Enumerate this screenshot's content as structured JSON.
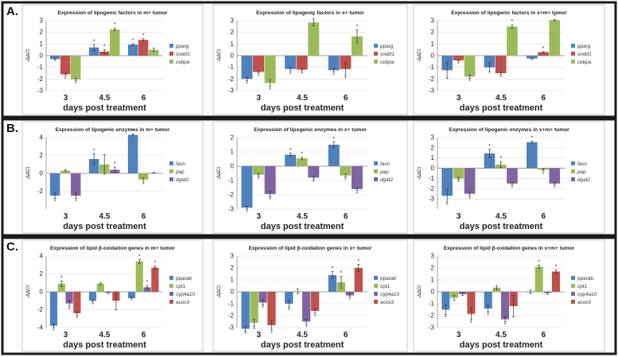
{
  "row_labels": [
    "A.",
    "B.",
    "C."
  ],
  "colors": {
    "blue": "#4F81BD",
    "red": "#C0504D",
    "green": "#9BBB59",
    "purple": "#8064A2"
  },
  "chart_data": [
    {
      "type": "bar",
      "title": "Expression of lipogenic factors in m+ tumor",
      "xlabel": "days post treatment",
      "ylabel": "-ΔΔCt",
      "categories": [
        "3",
        "4.5",
        "6"
      ],
      "ylim": [
        -3,
        3
      ],
      "yticks": [
        -3,
        -2,
        -1,
        0,
        1,
        2,
        3
      ],
      "grid": true,
      "legend_position": "right",
      "series": [
        {
          "name": "pparg",
          "color": "#4F81BD",
          "values": [
            -0.3,
            0.7,
            0.95
          ],
          "errors": [
            0.1,
            0.25,
            0.08
          ],
          "stars": [
            false,
            true,
            true
          ]
        },
        {
          "name": "srebf1",
          "color": "#C0504D",
          "values": [
            -1.6,
            0.35,
            1.35
          ],
          "errors": [
            0.1,
            0.15,
            0.1
          ],
          "stars": [
            true,
            true,
            true
          ]
        },
        {
          "name": "cebpa",
          "color": "#9BBB59",
          "values": [
            -2.05,
            2.25,
            0.5
          ],
          "errors": [
            0.1,
            0.12,
            0.15
          ],
          "stars": [
            true,
            true,
            false
          ]
        }
      ]
    },
    {
      "type": "bar",
      "title": "Expression of lipogenic factors in x+ tumor",
      "xlabel": "days post treatment",
      "ylabel": "-ΔΔCt",
      "categories": [
        "3",
        "4.5",
        "6"
      ],
      "ylim": [
        -3,
        3
      ],
      "yticks": [
        -3,
        -2,
        -1,
        0,
        1,
        2,
        3
      ],
      "grid": true,
      "legend_position": "right",
      "series": [
        {
          "name": "pparg",
          "color": "#4F81BD",
          "values": [
            -2.0,
            -1.15,
            -1.25
          ],
          "errors": [
            0.15,
            0.15,
            0.15
          ],
          "stars": [
            true,
            true,
            true
          ]
        },
        {
          "name": "srebf1",
          "color": "#C0504D",
          "values": [
            -1.4,
            -1.2,
            -1.15
          ],
          "errors": [
            0.1,
            0.1,
            0.55
          ],
          "stars": [
            true,
            true,
            true
          ]
        },
        {
          "name": "cebpa",
          "color": "#9BBB59",
          "values": [
            -2.35,
            2.85,
            1.65
          ],
          "errors": [
            0.3,
            0.3,
            0.55
          ],
          "stars": [
            true,
            true,
            true
          ]
        }
      ]
    },
    {
      "type": "bar",
      "title": "Expression of lipogenic factors in x+m+ tumor",
      "xlabel": "days post treatment",
      "ylabel": "-ΔΔCt",
      "categories": [
        "3",
        "4.5",
        "6"
      ],
      "ylim": [
        -3,
        3
      ],
      "yticks": [
        -3,
        -2,
        -1,
        0,
        1,
        2,
        3
      ],
      "grid": true,
      "legend_position": "right",
      "series": [
        {
          "name": "pparg",
          "color": "#4F81BD",
          "values": [
            -1.25,
            -1.0,
            -0.25
          ],
          "errors": [
            0.7,
            0.4,
            0.05
          ],
          "stars": [
            false,
            false,
            false
          ]
        },
        {
          "name": "srebf1",
          "color": "#C0504D",
          "values": [
            -0.4,
            -1.5,
            0.3
          ],
          "errors": [
            0.05,
            0.1,
            0.05
          ],
          "stars": [
            true,
            true,
            true
          ]
        },
        {
          "name": "cebpa",
          "color": "#9BBB59",
          "values": [
            -1.8,
            2.5,
            3.05
          ],
          "errors": [
            0.15,
            0.15,
            0.05
          ],
          "stars": [
            true,
            true,
            true
          ]
        }
      ]
    },
    {
      "type": "bar",
      "title": "Expression of lipogenic enzymes in m+ tumor",
      "xlabel": "days post treatment",
      "ylabel": "-ΔΔCt",
      "categories": [
        "3",
        "4.5",
        "6"
      ],
      "ylim": [
        -4,
        4
      ],
      "yticks": [
        -2,
        0,
        2,
        4
      ],
      "grid": true,
      "legend_position": "right",
      "series": [
        {
          "name": "fasn",
          "color": "#4F81BD",
          "values": [
            -2.5,
            1.6,
            4.3
          ],
          "errors": [
            0.3,
            0.6,
            0.1
          ],
          "stars": [
            true,
            true,
            true
          ]
        },
        {
          "name": "pap",
          "color": "#9BBB59",
          "values": [
            0.3,
            1.0,
            -0.7
          ],
          "errors": [
            0.1,
            1.1,
            0.2
          ],
          "stars": [
            false,
            false,
            true
          ]
        },
        {
          "name": "dgat2",
          "color": "#8064A2",
          "values": [
            -2.5,
            0.4,
            0.05
          ],
          "errors": [
            0.3,
            0.3,
            0.05
          ],
          "stars": [
            true,
            true,
            false
          ]
        }
      ]
    },
    {
      "type": "bar",
      "title": "Expression of lipogenic enzymes in x+ tumor",
      "xlabel": "days post treatment",
      "ylabel": "-ΔΔCt",
      "categories": [
        "3",
        "4.5",
        "6"
      ],
      "ylim": [
        -3,
        2
      ],
      "yticks": [
        -3,
        -2,
        -1,
        0,
        1,
        2
      ],
      "grid": true,
      "legend_position": "right",
      "series": [
        {
          "name": "fasn",
          "color": "#4F81BD",
          "values": [
            -2.9,
            0.8,
            1.5
          ],
          "errors": [
            0.1,
            0.1,
            0.2
          ],
          "stars": [
            true,
            true,
            true
          ]
        },
        {
          "name": "pap",
          "color": "#9BBB59",
          "values": [
            -0.6,
            0.55,
            -0.65
          ],
          "errors": [
            0.1,
            0.1,
            0.1
          ],
          "stars": [
            true,
            true,
            true
          ]
        },
        {
          "name": "dgat2",
          "color": "#8064A2",
          "values": [
            -1.95,
            -0.8,
            -1.6
          ],
          "errors": [
            0.2,
            0.1,
            0.1
          ],
          "stars": [
            true,
            true,
            true
          ]
        }
      ]
    },
    {
      "type": "bar",
      "title": "Expression of lipogenic enzymes in x+m+ tumor",
      "xlabel": "days post treatment",
      "ylabel": "-ΔΔCt",
      "categories": [
        "3",
        "4.5",
        "6"
      ],
      "ylim": [
        -4,
        3
      ],
      "yticks": [
        -3,
        -2,
        -1,
        0,
        1,
        2,
        3
      ],
      "grid": true,
      "legend_position": "right",
      "series": [
        {
          "name": "fasn",
          "color": "#4F81BD",
          "values": [
            -2.7,
            1.45,
            2.55
          ],
          "errors": [
            0.6,
            0.4,
            0.1
          ],
          "stars": [
            true,
            true,
            true
          ]
        },
        {
          "name": "pap",
          "color": "#9BBB59",
          "values": [
            -1.0,
            0.35,
            -0.15
          ],
          "errors": [
            0.1,
            0.3,
            0.1
          ],
          "stars": [
            true,
            true,
            true
          ]
        },
        {
          "name": "dgat2",
          "color": "#8064A2",
          "values": [
            -2.5,
            -1.5,
            -1.5
          ],
          "errors": [
            0.2,
            0.1,
            0.1
          ],
          "stars": [
            true,
            true,
            true
          ]
        }
      ]
    },
    {
      "type": "bar",
      "title": "Expression of lipid β-oxidation genes in m+ tumor",
      "xlabel": "days post treatment",
      "ylabel": "-ΔΔCt",
      "categories": [
        "3",
        "4.5",
        "6"
      ],
      "ylim": [
        -4,
        4
      ],
      "yticks": [
        -4,
        -2,
        0,
        2,
        4
      ],
      "grid": true,
      "legend_position": "right",
      "series": [
        {
          "name": "pparab",
          "color": "#4F81BD",
          "values": [
            -3.8,
            -1.0,
            -0.7
          ],
          "errors": [
            0.2,
            0.1,
            0.1
          ],
          "stars": [
            true,
            true,
            false
          ]
        },
        {
          "name": "cpt1",
          "color": "#9BBB59",
          "values": [
            0.9,
            0.9,
            3.4
          ],
          "errors": [
            0.3,
            0.1,
            0.2
          ],
          "stars": [
            true,
            false,
            true
          ]
        },
        {
          "name": "cyp4a10",
          "color": "#8064A2",
          "values": [
            -1.3,
            -0.1,
            0.5
          ],
          "errors": [
            0.3,
            0.1,
            0.2
          ],
          "stars": [
            true,
            false,
            true
          ]
        },
        {
          "name": "acox3",
          "color": "#C0504D",
          "values": [
            -2.4,
            -1.0,
            2.7
          ],
          "errors": [
            0.2,
            1.0,
            0.2
          ],
          "stars": [
            true,
            false,
            true
          ]
        }
      ]
    },
    {
      "type": "bar",
      "title": "Expression of lipid β-oxidation genes in x+ tumor",
      "xlabel": "days post treatment",
      "ylabel": "-ΔΔCt",
      "categories": [
        "3",
        "4.5",
        "6"
      ],
      "ylim": [
        -3,
        3
      ],
      "yticks": [
        -3,
        -2,
        -1,
        0,
        1,
        2,
        3
      ],
      "grid": true,
      "legend_position": "right",
      "series": [
        {
          "name": "pparab",
          "color": "#4F81BD",
          "values": [
            -3.1,
            -1.0,
            1.4
          ],
          "errors": [
            0.2,
            0.3,
            0.3
          ],
          "stars": [
            true,
            true,
            true
          ]
        },
        {
          "name": "cpt1",
          "color": "#9BBB59",
          "values": [
            -2.6,
            0.05,
            0.8
          ],
          "errors": [
            0.3,
            0.2,
            0.5
          ],
          "stars": [
            true,
            false,
            true
          ]
        },
        {
          "name": "cyp4a10",
          "color": "#8064A2",
          "values": [
            -0.9,
            -2.5,
            -0.3
          ],
          "errors": [
            0.2,
            0.2,
            0.1
          ],
          "stars": [
            true,
            true,
            true
          ]
        },
        {
          "name": "acox3",
          "color": "#C0504D",
          "values": [
            -2.8,
            -1.6,
            2.0
          ],
          "errors": [
            0.4,
            0.2,
            0.3
          ],
          "stars": [
            true,
            true,
            true
          ]
        }
      ]
    },
    {
      "type": "bar",
      "title": "Expression of lipid β-oxidation genes in x+m+ tumor",
      "xlabel": "days post treatment",
      "ylabel": "-ΔΔCt",
      "categories": [
        "3",
        "4.5",
        "6"
      ],
      "ylim": [
        -3,
        3
      ],
      "yticks": [
        -3,
        -2,
        -1,
        0,
        1,
        2,
        3
      ],
      "grid": true,
      "legend_position": "right",
      "series": [
        {
          "name": "pparab",
          "color": "#4F81BD",
          "values": [
            -1.5,
            -1.4,
            0.0
          ],
          "errors": [
            0.4,
            0.3,
            0.15
          ],
          "stars": [
            true,
            true,
            false
          ]
        },
        {
          "name": "cpt1",
          "color": "#9BBB59",
          "values": [
            -0.5,
            0.35,
            2.1
          ],
          "errors": [
            0.2,
            0.15,
            0.15
          ],
          "stars": [
            false,
            false,
            true
          ]
        },
        {
          "name": "cyp4a10",
          "color": "#8064A2",
          "values": [
            -0.2,
            -2.3,
            -0.1
          ],
          "errors": [
            0.1,
            0.2,
            0.1
          ],
          "stars": [
            false,
            true,
            false
          ]
        },
        {
          "name": "acox3",
          "color": "#C0504D",
          "values": [
            -1.85,
            -1.2,
            1.7
          ],
          "errors": [
            0.5,
            0.9,
            0.15
          ],
          "stars": [
            true,
            false,
            true
          ]
        }
      ]
    }
  ]
}
